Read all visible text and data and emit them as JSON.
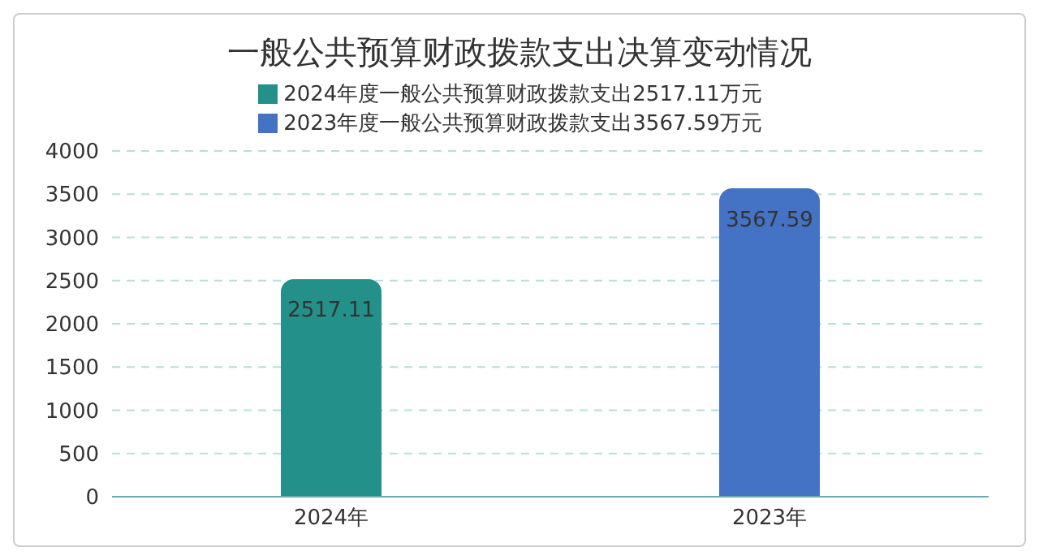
{
  "chart_data": {
    "type": "bar",
    "title": "一般公共预算财政拨款支出决算变动情况",
    "categories": [
      "2024年",
      "2023年"
    ],
    "series": [
      {
        "name": "2024年度一般公共预算财政拨款支出2517.11万元",
        "color": "#23908a",
        "values": [
          2517.11,
          null
        ]
      },
      {
        "name": "2023年度一般公共预算财政拨款支出3567.59万元",
        "color": "#4472c4",
        "values": [
          null,
          3567.59
        ]
      }
    ],
    "ylim": [
      0,
      4000
    ],
    "yticks": [
      0,
      500,
      1000,
      1500,
      2000,
      2500,
      3000,
      3500,
      4000
    ],
    "grid": "y",
    "legend": "top",
    "data_labels": true
  }
}
